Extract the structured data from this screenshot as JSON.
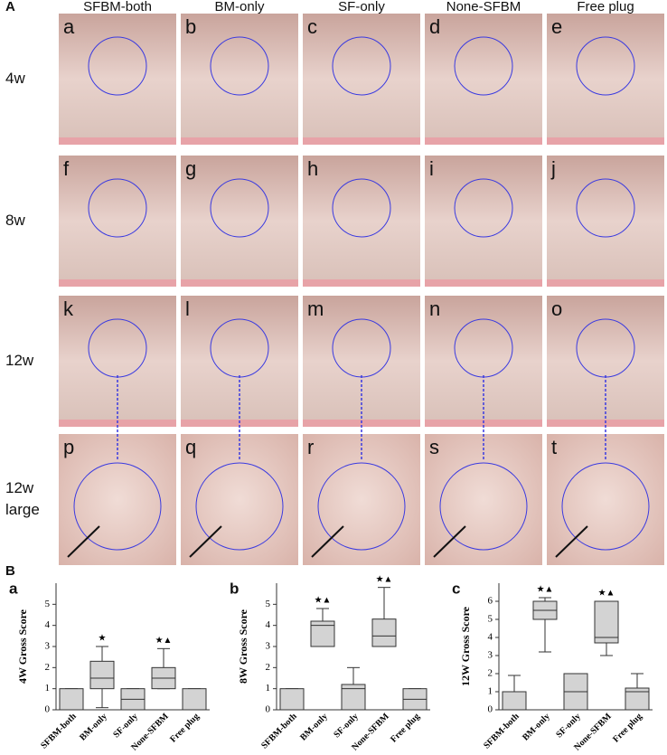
{
  "panel_a": {
    "label": "A",
    "columns": [
      "SFBM-both",
      "BM-only",
      "SF-only",
      "None-SFBM",
      "Free plug"
    ],
    "rows": [
      [
        "4w"
      ],
      [
        "8w"
      ],
      [
        "12w"
      ],
      [
        "12w",
        "large"
      ]
    ],
    "letters": [
      "a",
      "b",
      "c",
      "d",
      "e",
      "f",
      "g",
      "h",
      "i",
      "j",
      "k",
      "l",
      "m",
      "n",
      "o",
      "p",
      "q",
      "r",
      "s",
      "t"
    ]
  },
  "panel_b_label": "B",
  "chart_data": [
    {
      "type": "box",
      "panel": "a",
      "y_label": "4W Gross Score",
      "categories": [
        "SFBM-both",
        "BM-only",
        "SF-only",
        "None-SFBM",
        "Free plug"
      ],
      "min": [
        0,
        0.1,
        0,
        1,
        0
      ],
      "q1": [
        0,
        1,
        0,
        1,
        0
      ],
      "median": [
        0,
        1.5,
        0.5,
        1.5,
        0
      ],
      "q3": [
        1,
        2.3,
        1,
        2,
        1
      ],
      "max": [
        1,
        3,
        1,
        2.9,
        1
      ],
      "markers": [
        null,
        "★",
        null,
        "★▲",
        null
      ],
      "color": "#d3d3d3",
      "ylim": [
        0,
        6
      ],
      "yticks": [
        0,
        1,
        2,
        3,
        4,
        5
      ]
    },
    {
      "type": "box",
      "panel": "b",
      "y_label": "8W Gross Score",
      "categories": [
        "SFBM-both",
        "BM-only",
        "SF-only",
        "None-SFBM",
        "Free plug"
      ],
      "min": [
        0,
        3,
        0,
        3,
        0
      ],
      "q1": [
        0,
        3,
        0,
        3,
        0
      ],
      "median": [
        0,
        4,
        1,
        3.5,
        0.5
      ],
      "q3": [
        1,
        4.2,
        1.2,
        4.3,
        1
      ],
      "max": [
        1,
        4.8,
        2,
        5.8,
        1
      ],
      "markers": [
        null,
        "★▲",
        null,
        "★▲",
        null
      ],
      "color": "#d3d3d3",
      "ylim": [
        0,
        6
      ],
      "yticks": [
        0,
        1,
        2,
        3,
        4,
        5
      ]
    },
    {
      "type": "box",
      "panel": "c",
      "y_label": "12W Gross Score",
      "categories": [
        "SFBM-both",
        "BM-only",
        "SF-only",
        "None-SFBM",
        "Free plug"
      ],
      "min": [
        0,
        3.2,
        0,
        3,
        0
      ],
      "q1": [
        0,
        5,
        0,
        3.7,
        0
      ],
      "median": [
        0,
        5.5,
        1,
        4,
        1
      ],
      "q3": [
        1,
        6,
        2,
        6,
        1.2
      ],
      "max": [
        1.9,
        6.2,
        2,
        6,
        2
      ],
      "markers": [
        null,
        "★▲",
        null,
        "★▲",
        null
      ],
      "color": "#d3d3d3",
      "ylim": [
        0,
        7
      ],
      "yticks": [
        0,
        1,
        2,
        3,
        4,
        5,
        6
      ]
    }
  ]
}
